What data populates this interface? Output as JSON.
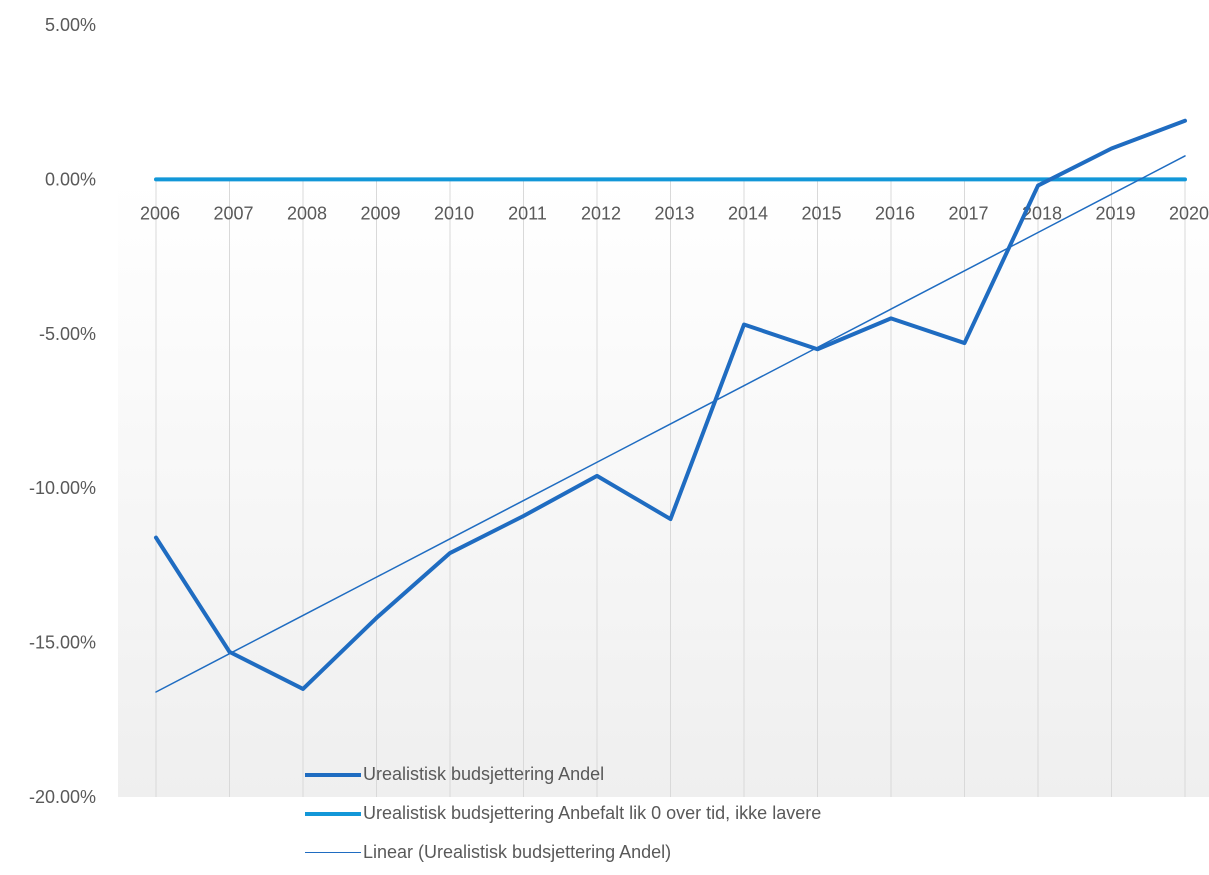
{
  "chart_data": {
    "type": "line",
    "x": [
      "2006",
      "2007",
      "2008",
      "2009",
      "2010",
      "2011",
      "2012",
      "2013",
      "2014",
      "2015",
      "2016",
      "2017",
      "2018",
      "2019",
      "2020"
    ],
    "y_ticks": [
      "5.00%",
      "0.00%",
      "-5.00%",
      "-10.00%",
      "-15.00%",
      "-20.00%"
    ],
    "ylim": [
      -20,
      5
    ],
    "y_unit": "%",
    "grid": "vertical lines at each category",
    "legend_position": "bottom",
    "series": [
      {
        "name": "Urealistisk budsjettering Andel",
        "values": [
          -11.6,
          -15.3,
          -16.5,
          -14.2,
          -12.1,
          -10.9,
          -9.6,
          -11.0,
          -4.7,
          -5.5,
          -4.5,
          -5.3,
          -0.2,
          1.0,
          1.9
        ],
        "color": "#1f6cc1",
        "style": "thick"
      },
      {
        "name": "Urealistisk budsjettering Anbefalt lik 0 over tid, ikke lavere",
        "values": [
          0,
          0,
          0,
          0,
          0,
          0,
          0,
          0,
          0,
          0,
          0,
          0,
          0,
          0,
          0
        ],
        "color": "#1297d8",
        "style": "thick"
      },
      {
        "name": "Linear (Urealistisk budsjettering Andel)",
        "type": "trendline",
        "values": [
          -16.6,
          -15.36,
          -14.12,
          -12.88,
          -11.64,
          -10.4,
          -9.16,
          -7.92,
          -6.68,
          -5.44,
          -4.2,
          -2.96,
          -1.72,
          -0.48,
          0.76
        ],
        "color": "#1f6cc1",
        "style": "thin"
      }
    ]
  }
}
